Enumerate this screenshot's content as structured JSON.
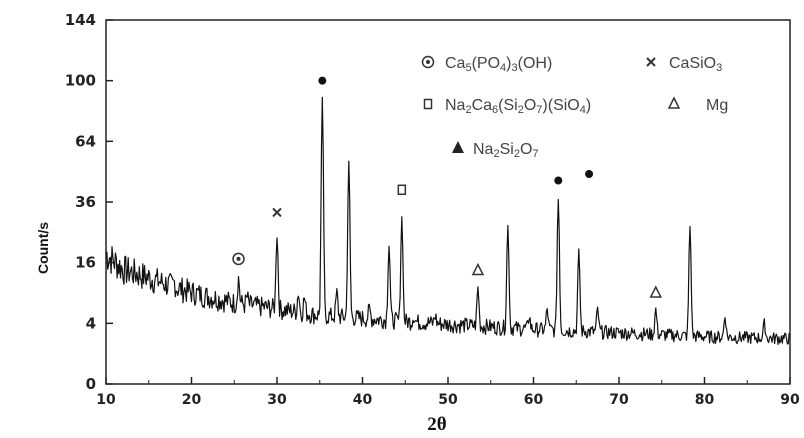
{
  "chart_data": {
    "type": "line",
    "xlabel": "2θ",
    "ylabel": "Count/s",
    "xlim": [
      10,
      90
    ],
    "x_ticks": [
      "10",
      "20",
      "30",
      "40",
      "50",
      "60",
      "70",
      "80",
      "90"
    ],
    "y_ticks": [
      "0",
      "4",
      "16",
      "36",
      "64",
      "100",
      "144"
    ],
    "y_scale": "square-root",
    "grid": false,
    "legend_position": "top-right",
    "legend": [
      {
        "symbol": "circle-dot",
        "parts": [
          [
            "Ca",
            ""
          ],
          [
            "5",
            "sub"
          ],
          [
            "(PO",
            ""
          ],
          [
            "4",
            "sub"
          ],
          [
            ")",
            ""
          ],
          [
            "3",
            "sub"
          ],
          [
            "(OH)",
            ""
          ]
        ]
      },
      {
        "symbol": "cross",
        "parts": [
          [
            "CaSiO",
            ""
          ],
          [
            "3",
            "sub"
          ]
        ]
      },
      {
        "symbol": "open-square",
        "parts": [
          [
            "Na",
            ""
          ],
          [
            "2",
            "sub"
          ],
          [
            "Ca",
            ""
          ],
          [
            "6",
            "sub"
          ],
          [
            "(Si",
            ""
          ],
          [
            "2",
            "sub"
          ],
          [
            "O",
            ""
          ],
          [
            "7",
            "sub"
          ],
          [
            ")(SiO",
            ""
          ],
          [
            "4",
            "sub"
          ],
          [
            ")",
            ""
          ]
        ]
      },
      {
        "symbol": "open-triangle",
        "parts": [
          [
            "Mg",
            ""
          ]
        ]
      },
      {
        "symbol": "filled-triangle",
        "parts": [
          [
            "Na",
            ""
          ],
          [
            "2",
            "sub"
          ],
          [
            "Si",
            ""
          ],
          [
            "2",
            "sub"
          ],
          [
            "O",
            ""
          ],
          [
            "7",
            "sub"
          ]
        ]
      }
    ],
    "background": [
      [
        10,
        18
      ],
      [
        12,
        14
      ],
      [
        15,
        12
      ],
      [
        18,
        10
      ],
      [
        21,
        8.5
      ],
      [
        25,
        7
      ],
      [
        30,
        6
      ],
      [
        35,
        5
      ],
      [
        40,
        4.6
      ],
      [
        45,
        4.2
      ],
      [
        50,
        3.8
      ],
      [
        55,
        3.5
      ],
      [
        60,
        3.2
      ],
      [
        65,
        3
      ],
      [
        70,
        2.8
      ],
      [
        75,
        2.6
      ],
      [
        80,
        2.4
      ],
      [
        85,
        2.3
      ],
      [
        90,
        2.2
      ]
    ],
    "peaks": [
      {
        "x": 18,
        "y": 11
      },
      {
        "x": 25.5,
        "y": 12
      },
      {
        "x": 26.5,
        "y": 8
      },
      {
        "x": 30.0,
        "y": 24
      },
      {
        "x": 32.5,
        "y": 9
      },
      {
        "x": 33.2,
        "y": 8
      },
      {
        "x": 35.3,
        "y": 88
      },
      {
        "x": 37.0,
        "y": 9
      },
      {
        "x": 38.4,
        "y": 53
      },
      {
        "x": 40.8,
        "y": 6
      },
      {
        "x": 43.1,
        "y": 21
      },
      {
        "x": 44.6,
        "y": 30
      },
      {
        "x": 46.0,
        "y": 5
      },
      {
        "x": 48.5,
        "y": 5
      },
      {
        "x": 53.5,
        "y": 10
      },
      {
        "x": 57.0,
        "y": 27
      },
      {
        "x": 59.5,
        "y": 5
      },
      {
        "x": 61.6,
        "y": 6
      },
      {
        "x": 62.9,
        "y": 37
      },
      {
        "x": 65.3,
        "y": 19
      },
      {
        "x": 67.5,
        "y": 6
      },
      {
        "x": 74.3,
        "y": 6
      },
      {
        "x": 78.3,
        "y": 27
      },
      {
        "x": 82.4,
        "y": 5
      },
      {
        "x": 87.0,
        "y": 4
      }
    ],
    "markers": [
      {
        "symbol": "circle-dot",
        "x": 25.5,
        "y": 17
      },
      {
        "symbol": "cross",
        "x": 30.0,
        "y": 32
      },
      {
        "symbol": "filled-circle",
        "x": 35.3,
        "y": 100
      },
      {
        "symbol": "open-square",
        "x": 44.6,
        "y": 41
      },
      {
        "symbol": "open-triangle",
        "x": 53.5,
        "y": 14
      },
      {
        "symbol": "filled-circle",
        "x": 62.9,
        "y": 45
      },
      {
        "symbol": "filled-circle",
        "x": 66.5,
        "y": 50
      },
      {
        "symbol": "open-triangle",
        "x": 74.3,
        "y": 9
      }
    ]
  }
}
